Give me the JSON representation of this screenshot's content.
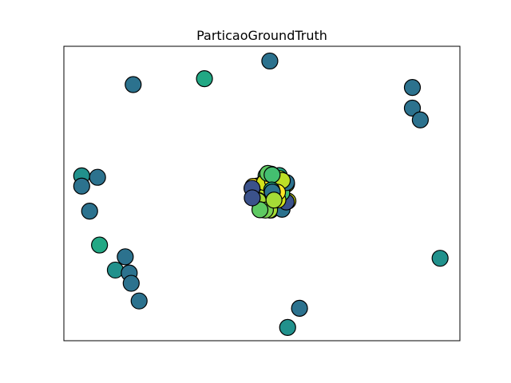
{
  "chart_data": {
    "type": "scatter",
    "title": "ParticaoGroundTruth",
    "xlabel": "",
    "ylabel": "",
    "xlim": [
      0,
      100
    ],
    "ylim": [
      0,
      100
    ],
    "grid": false,
    "ticks": false,
    "legend": "none",
    "colormap": "viridis",
    "outer_nodes": [
      {
        "x": 52.0,
        "y": 95.0,
        "color": "#2c728e"
      },
      {
        "x": 17.5,
        "y": 87.0,
        "color": "#2c728e"
      },
      {
        "x": 35.5,
        "y": 89.0,
        "color": "#22a884"
      },
      {
        "x": 88.0,
        "y": 86.0,
        "color": "#2c728e"
      },
      {
        "x": 88.0,
        "y": 79.0,
        "color": "#2c728e"
      },
      {
        "x": 90.0,
        "y": 75.0,
        "color": "#2c728e"
      },
      {
        "x": 4.5,
        "y": 56.0,
        "color": "#21918c"
      },
      {
        "x": 8.5,
        "y": 55.5,
        "color": "#2c728e"
      },
      {
        "x": 4.5,
        "y": 52.5,
        "color": "#2c728e"
      },
      {
        "x": 6.5,
        "y": 44.0,
        "color": "#2c728e"
      },
      {
        "x": 9.0,
        "y": 32.5,
        "color": "#22a884"
      },
      {
        "x": 15.5,
        "y": 28.5,
        "color": "#2c728e"
      },
      {
        "x": 13.0,
        "y": 24.0,
        "color": "#21918c"
      },
      {
        "x": 16.5,
        "y": 23.0,
        "color": "#2c728e"
      },
      {
        "x": 17.0,
        "y": 19.5,
        "color": "#2c728e"
      },
      {
        "x": 19.0,
        "y": 13.5,
        "color": "#2c728e"
      },
      {
        "x": 95.0,
        "y": 28.0,
        "color": "#21918c"
      },
      {
        "x": 59.5,
        "y": 11.0,
        "color": "#2c728e"
      },
      {
        "x": 56.5,
        "y": 4.5,
        "color": "#21918c"
      }
    ],
    "cluster": {
      "center_x": 52.0,
      "center_y": 50.0,
      "count": 60,
      "spread_x": 5.0,
      "spread_y": 7.0,
      "colors": [
        "#bddf26",
        "#d2e21b",
        "#fde725",
        "#7ad151",
        "#5ec962",
        "#44bf70",
        "#22a884",
        "#2c728e",
        "#3b528b",
        "#a5db36"
      ]
    }
  }
}
